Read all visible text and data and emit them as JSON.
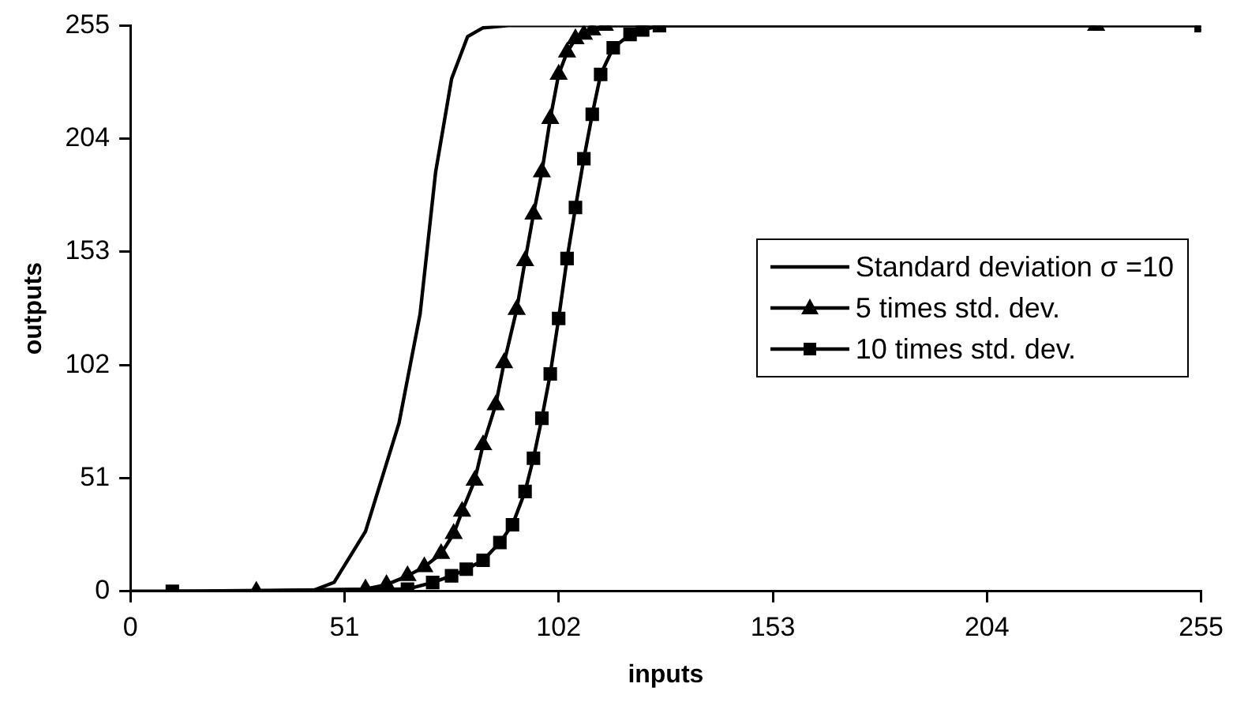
{
  "chart_data": {
    "type": "line",
    "xlabel": "inputs",
    "ylabel": "outputs",
    "xlim": [
      0,
      255
    ],
    "ylim": [
      0,
      255
    ],
    "xticks": [
      0,
      51,
      102,
      153,
      204,
      255
    ],
    "yticks": [
      0,
      51,
      102,
      153,
      204,
      255
    ],
    "grid": false,
    "legend": "right",
    "line_style": "solid",
    "series": [
      {
        "name": "Standard deviation σ =10",
        "color": "#000000",
        "marker": "none",
        "x": [
          0,
          20,
          43,
          48.5,
          56,
          64,
          69,
          72.7,
          76.5,
          80.3,
          84,
          90,
          120,
          180,
          255
        ],
        "values": [
          0,
          0,
          0,
          4,
          27,
          76,
          125,
          189,
          231,
          250,
          254,
          255,
          255,
          255,
          255
        ]
      },
      {
        "name": "5 times std. dev.",
        "color": "#000000",
        "marker": "triangle",
        "x": [
          30,
          56,
          61,
          66,
          70,
          74,
          77,
          79,
          82,
          84,
          87,
          89,
          92,
          94,
          96,
          98,
          100,
          102,
          104,
          106,
          108,
          110,
          113,
          230
        ],
        "values": [
          0,
          1,
          3,
          7,
          11,
          17,
          26,
          36,
          50,
          66,
          84,
          103,
          127,
          149,
          170,
          189,
          213,
          233,
          243,
          249,
          251,
          253,
          255,
          255
        ]
      },
      {
        "name": "10 times std. dev.",
        "color": "#000000",
        "marker": "square",
        "x": [
          10,
          66,
          72,
          76.5,
          80,
          84,
          88,
          91,
          94,
          96,
          98,
          100,
          102,
          104,
          106,
          108,
          110,
          112,
          115,
          119,
          122,
          126,
          255
        ],
        "values": [
          0,
          1,
          4,
          7,
          10,
          14,
          22,
          30,
          45,
          60,
          78,
          98,
          123,
          150,
          173,
          195,
          215,
          233,
          245,
          251,
          253,
          255,
          255
        ]
      }
    ]
  }
}
